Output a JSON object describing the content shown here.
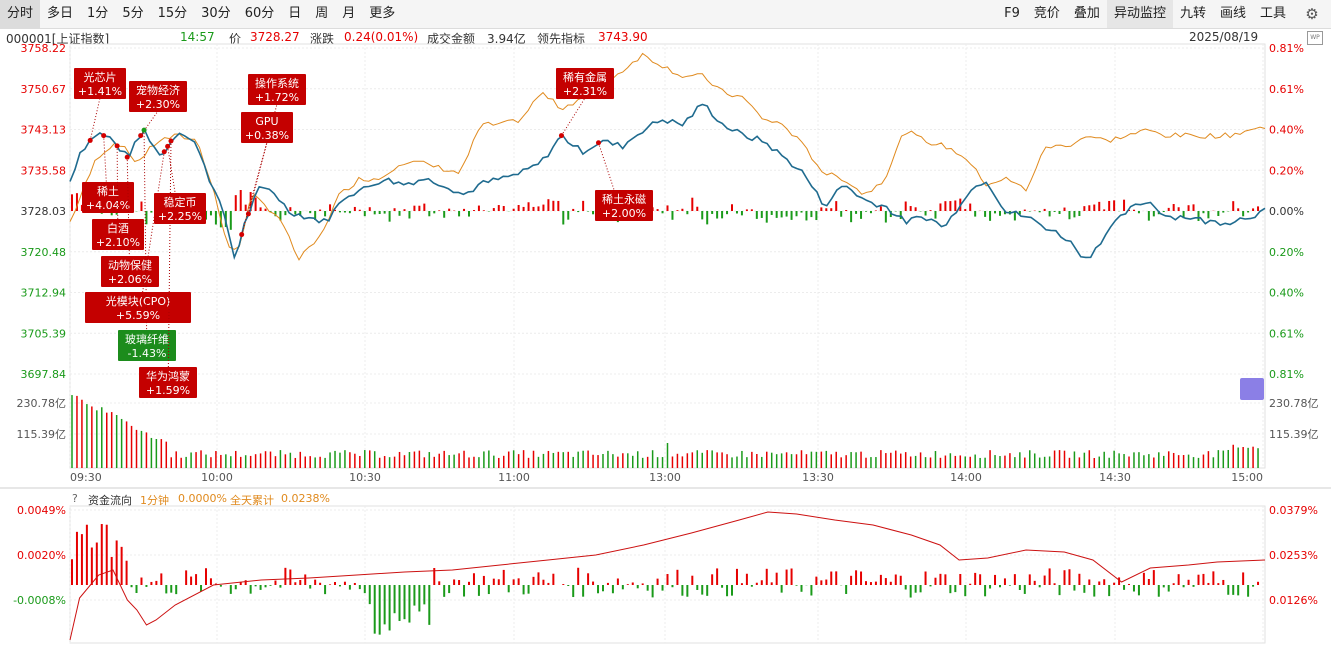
{
  "toolbar": {
    "periods": [
      "分时",
      "多日",
      "1分",
      "5分",
      "15分",
      "30分",
      "60分",
      "日",
      "周",
      "月",
      "更多"
    ],
    "active_period": "分时",
    "tools": [
      "F9",
      "竞价",
      "叠加",
      "异动监控",
      "九转",
      "画线",
      "工具"
    ],
    "active_tool": "异动监控",
    "settings_icon": "gear-icon"
  },
  "info": {
    "code": "000001[上证指数]",
    "time": "14:57",
    "price_label": "价",
    "price": "3728.27",
    "change_label": "涨跌",
    "change": "0.24(0.01%)",
    "turnover_label": "成交金额",
    "turnover": "3.94亿",
    "leading_label": "领先指标",
    "leading": "3743.90",
    "date": "2025/08/19"
  },
  "flow": {
    "help": "?",
    "title": "资金流向",
    "minute_label": "1分钟",
    "minute_value": "0.0000%",
    "day_label": "全天累计",
    "day_value": "0.0238%"
  },
  "colors": {
    "up": "#e60000",
    "down": "#1a9a1a",
    "price_line": "#1f6b8f",
    "leading_line": "#e08a1e",
    "flow_line": "#cc1111",
    "label_up_bg": "#c40000",
    "label_down_bg": "#1c8c1c"
  },
  "chart_data": {
    "type": "line",
    "price_axis": {
      "ticks": [
        "3758.22",
        "3750.67",
        "3743.13",
        "3735.58",
        "3728.03",
        "3720.48",
        "3712.94",
        "3705.39",
        "3697.84"
      ],
      "ylim": [
        3697.84,
        3758.22
      ],
      "prev_close": 3728.03
    },
    "pct_axis": {
      "ticks": [
        "0.81%",
        "0.61%",
        "0.40%",
        "0.20%",
        "0.00%",
        "0.20%",
        "0.40%",
        "0.61%",
        "0.81%"
      ]
    },
    "volume_axis": {
      "ticks": [
        "230.78亿",
        "115.39亿"
      ]
    },
    "time_axis": {
      "ticks": [
        "09:30",
        "10:00",
        "10:30",
        "11:00",
        "13:00",
        "13:30",
        "14:00",
        "14:30",
        "15:00"
      ]
    },
    "price_series": [
      {
        "t": 0,
        "v": 3733.5
      },
      {
        "t": 3,
        "v": 3739
      },
      {
        "t": 8,
        "v": 3742.5
      },
      {
        "t": 12,
        "v": 3741.5
      },
      {
        "t": 17,
        "v": 3738
      },
      {
        "t": 22,
        "v": 3743
      },
      {
        "t": 27,
        "v": 3738
      },
      {
        "t": 32,
        "v": 3743
      },
      {
        "t": 38,
        "v": 3740
      },
      {
        "t": 42,
        "v": 3733
      },
      {
        "t": 46,
        "v": 3727
      },
      {
        "t": 49,
        "v": 3719
      },
      {
        "t": 52,
        "v": 3726
      },
      {
        "t": 56,
        "v": 3732
      },
      {
        "t": 60,
        "v": 3732
      },
      {
        "t": 65,
        "v": 3728
      },
      {
        "t": 70,
        "v": 3727
      },
      {
        "t": 76,
        "v": 3726
      },
      {
        "t": 82,
        "v": 3731
      },
      {
        "t": 87,
        "v": 3732
      },
      {
        "t": 93,
        "v": 3734
      },
      {
        "t": 99,
        "v": 3733
      },
      {
        "t": 105,
        "v": 3734
      },
      {
        "t": 111,
        "v": 3733
      },
      {
        "t": 117,
        "v": 3731
      },
      {
        "t": 122,
        "v": 3733
      },
      {
        "t": 128,
        "v": 3734
      },
      {
        "t": 134,
        "v": 3735
      },
      {
        "t": 140,
        "v": 3737
      },
      {
        "t": 146,
        "v": 3742
      },
      {
        "t": 152,
        "v": 3739
      },
      {
        "t": 158,
        "v": 3741
      },
      {
        "t": 164,
        "v": 3740
      },
      {
        "t": 170,
        "v": 3743
      },
      {
        "t": 176,
        "v": 3745
      },
      {
        "t": 182,
        "v": 3744
      },
      {
        "t": 188,
        "v": 3748
      },
      {
        "t": 194,
        "v": 3744
      },
      {
        "t": 200,
        "v": 3742
      },
      {
        "t": 206,
        "v": 3741
      },
      {
        "t": 212,
        "v": 3738
      },
      {
        "t": 218,
        "v": 3735
      },
      {
        "t": 224,
        "v": 3729
      },
      {
        "t": 230,
        "v": 3733
      },
      {
        "t": 236,
        "v": 3730
      },
      {
        "t": 242,
        "v": 3729
      },
      {
        "t": 248,
        "v": 3726
      },
      {
        "t": 254,
        "v": 3727
      },
      {
        "t": 260,
        "v": 3725
      },
      {
        "t": 266,
        "v": 3731
      },
      {
        "t": 272,
        "v": 3734
      },
      {
        "t": 278,
        "v": 3728
      },
      {
        "t": 284,
        "v": 3727
      },
      {
        "t": 290,
        "v": 3725
      },
      {
        "t": 296,
        "v": 3723
      },
      {
        "t": 302,
        "v": 3719
      },
      {
        "t": 308,
        "v": 3724
      },
      {
        "t": 314,
        "v": 3728
      },
      {
        "t": 320,
        "v": 3730
      },
      {
        "t": 326,
        "v": 3727
      },
      {
        "t": 332,
        "v": 3727
      },
      {
        "t": 338,
        "v": 3726
      },
      {
        "t": 344,
        "v": 3726
      },
      {
        "t": 350,
        "v": 3727
      },
      {
        "t": 355,
        "v": 3728
      }
    ],
    "leading_series": [
      {
        "t": 0,
        "v": 3726
      },
      {
        "t": 4,
        "v": 3732
      },
      {
        "t": 8,
        "v": 3738
      },
      {
        "t": 14,
        "v": 3741
      },
      {
        "t": 20,
        "v": 3737
      },
      {
        "t": 26,
        "v": 3741
      },
      {
        "t": 32,
        "v": 3742
      },
      {
        "t": 38,
        "v": 3741
      },
      {
        "t": 43,
        "v": 3731
      },
      {
        "t": 47,
        "v": 3721
      },
      {
        "t": 50,
        "v": 3721
      },
      {
        "t": 54,
        "v": 3731
      },
      {
        "t": 58,
        "v": 3729
      },
      {
        "t": 62,
        "v": 3727
      },
      {
        "t": 68,
        "v": 3719
      },
      {
        "t": 74,
        "v": 3723
      },
      {
        "t": 80,
        "v": 3731
      },
      {
        "t": 86,
        "v": 3734
      },
      {
        "t": 92,
        "v": 3734
      },
      {
        "t": 98,
        "v": 3737
      },
      {
        "t": 104,
        "v": 3737
      },
      {
        "t": 110,
        "v": 3736
      },
      {
        "t": 116,
        "v": 3735
      },
      {
        "t": 122,
        "v": 3744
      },
      {
        "t": 128,
        "v": 3744
      },
      {
        "t": 134,
        "v": 3745
      },
      {
        "t": 140,
        "v": 3750
      },
      {
        "t": 146,
        "v": 3747
      },
      {
        "t": 152,
        "v": 3749
      },
      {
        "t": 158,
        "v": 3751
      },
      {
        "t": 164,
        "v": 3754
      },
      {
        "t": 170,
        "v": 3757
      },
      {
        "t": 176,
        "v": 3755
      },
      {
        "t": 182,
        "v": 3753
      },
      {
        "t": 188,
        "v": 3753
      },
      {
        "t": 194,
        "v": 3750
      },
      {
        "t": 200,
        "v": 3749
      },
      {
        "t": 206,
        "v": 3745
      },
      {
        "t": 212,
        "v": 3744
      },
      {
        "t": 218,
        "v": 3740
      },
      {
        "t": 224,
        "v": 3735
      },
      {
        "t": 230,
        "v": 3734
      },
      {
        "t": 236,
        "v": 3731
      },
      {
        "t": 242,
        "v": 3734
      },
      {
        "t": 248,
        "v": 3743
      },
      {
        "t": 254,
        "v": 3741
      },
      {
        "t": 260,
        "v": 3740
      },
      {
        "t": 266,
        "v": 3738
      },
      {
        "t": 272,
        "v": 3733
      },
      {
        "t": 278,
        "v": 3734
      },
      {
        "t": 284,
        "v": 3732
      },
      {
        "t": 290,
        "v": 3740
      },
      {
        "t": 296,
        "v": 3740
      },
      {
        "t": 302,
        "v": 3742
      },
      {
        "t": 308,
        "v": 3741
      },
      {
        "t": 314,
        "v": 3742
      },
      {
        "t": 320,
        "v": 3743
      },
      {
        "t": 326,
        "v": 3742
      },
      {
        "t": 332,
        "v": 3742
      },
      {
        "t": 338,
        "v": 3742
      },
      {
        "t": 344,
        "v": 3742
      },
      {
        "t": 350,
        "v": 3743
      },
      {
        "t": 355,
        "v": 3743.5
      }
    ],
    "markers": [
      {
        "name": "光芯片",
        "pct": "+1.41%",
        "t": 6,
        "color": "up",
        "side": "above",
        "pos": "high"
      },
      {
        "name": "宠物经济",
        "pct": "+2.30%",
        "t": 21,
        "color": "up",
        "side": "above",
        "pos": "mid"
      },
      {
        "name": "稀土",
        "pct": "+4.04%",
        "t": 10,
        "color": "up",
        "side": "below",
        "pos": "b1"
      },
      {
        "name": "白酒",
        "pct": "+2.10%",
        "t": 14,
        "color": "up",
        "side": "below",
        "pos": "b2"
      },
      {
        "name": "动物保健",
        "pct": "+2.06%",
        "t": 17,
        "color": "up",
        "side": "below",
        "pos": "b3"
      },
      {
        "name": "光模块(CPO)",
        "pct": "+5.59%",
        "t": 28,
        "color": "up",
        "side": "below",
        "pos": "b4"
      },
      {
        "name": "玻璃纤维",
        "pct": "-1.43%",
        "t": 22,
        "color": "down",
        "side": "below",
        "pos": "b5"
      },
      {
        "name": "华为鸿蒙",
        "pct": "+1.59%",
        "t": 30,
        "color": "up",
        "side": "below",
        "pos": "b6"
      },
      {
        "name": "稳定币",
        "pct": "+2.25%",
        "t": 29,
        "color": "up",
        "side": "below",
        "pos": "b0"
      },
      {
        "name": "操作系统",
        "pct": "+1.72%",
        "t": 53,
        "color": "up",
        "side": "above",
        "pos": "mid"
      },
      {
        "name": "GPU",
        "pct": "+0.38%",
        "t": 51,
        "color": "up",
        "side": "above",
        "pos": "low"
      },
      {
        "name": "稀有金属",
        "pct": "+2.31%",
        "t": 146,
        "color": "up",
        "side": "above",
        "pos": "mid"
      },
      {
        "name": "稀土永磁",
        "pct": "+2.00%",
        "t": 157,
        "color": "up",
        "side": "below",
        "pos": "b0"
      }
    ],
    "flow_axis": {
      "left_ticks": [
        "0.0049%",
        "0.0020%",
        "-0.0008%"
      ],
      "right_ticks": [
        "0.0379%",
        "0.0253%",
        "0.0126%"
      ]
    }
  }
}
